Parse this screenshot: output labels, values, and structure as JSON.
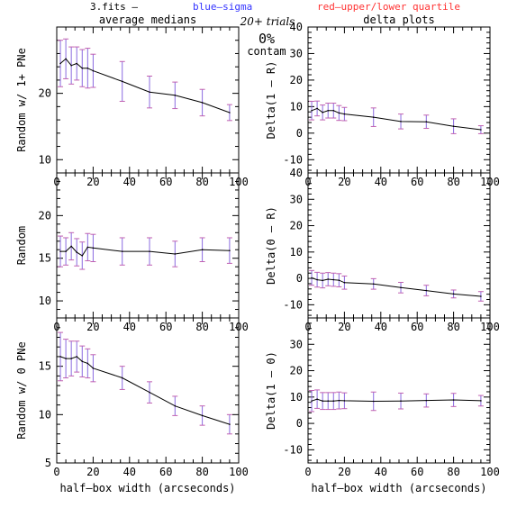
{
  "header": {
    "file_label": "3.fits  –",
    "blue_label": "blue–sigma",
    "red_label": "red–upper/lower quartile",
    "trials_label": "20+ trials",
    "contam_pct": "0%",
    "contam_label": "contam",
    "left_title": "average medians",
    "right_title": "delta plots"
  },
  "colors": {
    "blue": "#3333ff",
    "red": "#ff3333",
    "errorbar": "#8a6ae0",
    "errorcap": "#c060b0"
  },
  "chart_data": [
    {
      "type": "line",
      "panel": "top-left",
      "ylabel": "Random w/ 1+ PNe",
      "xlim": [
        0,
        100
      ],
      "ylim": [
        8,
        30
      ],
      "yticks": [
        10,
        20
      ],
      "x": [
        2,
        5,
        8,
        11,
        14,
        17,
        20,
        36,
        51,
        65,
        80,
        95
      ],
      "y": [
        24.5,
        25.2,
        24.2,
        24.5,
        23.8,
        23.8,
        23.4,
        21.8,
        20.2,
        19.7,
        18.6,
        17.1
      ],
      "err": [
        3.5,
        3.0,
        2.8,
        2.5,
        2.8,
        3.0,
        2.5,
        3.0,
        2.4,
        2.0,
        2.0,
        1.2
      ]
    },
    {
      "type": "line",
      "panel": "middle-left",
      "ylabel": "Random",
      "xlim": [
        0,
        100
      ],
      "ylim": [
        8,
        25
      ],
      "yticks": [
        10,
        15,
        20
      ],
      "x": [
        2,
        5,
        8,
        11,
        14,
        17,
        20,
        36,
        51,
        65,
        80,
        95
      ],
      "y": [
        15.8,
        15.8,
        16.4,
        15.7,
        15.3,
        16.3,
        16.2,
        15.8,
        15.8,
        15.5,
        16.0,
        15.9
      ],
      "err": [
        1.8,
        1.6,
        1.6,
        1.6,
        1.6,
        1.6,
        1.6,
        1.6,
        1.6,
        1.5,
        1.4,
        1.5
      ]
    },
    {
      "type": "line",
      "panel": "bottom-left",
      "ylabel": "Random w/ 0 PNe",
      "xlabel": "half–box width (arcseconds)",
      "xlim": [
        0,
        100
      ],
      "ylim": [
        5,
        20
      ],
      "yticks": [
        5,
        10,
        15
      ],
      "x": [
        2,
        5,
        8,
        11,
        14,
        17,
        20,
        36,
        51,
        65,
        80,
        95
      ],
      "y": [
        16.0,
        15.8,
        15.8,
        16.0,
        15.5,
        15.3,
        14.8,
        13.8,
        12.3,
        10.9,
        9.9,
        9.0
      ],
      "err": [
        2.5,
        2.0,
        1.8,
        1.6,
        1.6,
        1.5,
        1.4,
        1.2,
        1.1,
        1.0,
        1.0,
        1.0
      ]
    },
    {
      "type": "line",
      "panel": "top-right",
      "ylabel": "Delta(1 – R)",
      "xlim": [
        0,
        100
      ],
      "ylim": [
        -15,
        40
      ],
      "yticks": [
        -10,
        0,
        10,
        20,
        30,
        40
      ],
      "x": [
        2,
        5,
        8,
        11,
        14,
        17,
        20,
        36,
        51,
        65,
        80,
        95
      ],
      "y": [
        8.5,
        9.3,
        7.8,
        8.5,
        8.5,
        7.6,
        7.2,
        6.0,
        4.4,
        4.3,
        2.6,
        1.3
      ],
      "err": [
        3.5,
        2.8,
        2.8,
        2.8,
        2.8,
        2.8,
        2.5,
        3.5,
        2.8,
        2.5,
        2.8,
        1.5
      ]
    },
    {
      "type": "line",
      "panel": "middle-right",
      "ylabel": "Delta(0 – R)",
      "xlim": [
        0,
        100
      ],
      "ylim": [
        -15,
        40
      ],
      "yticks": [
        -10,
        0,
        10,
        20,
        30,
        40
      ],
      "x": [
        2,
        5,
        8,
        11,
        14,
        17,
        20,
        36,
        51,
        65,
        80,
        95
      ],
      "y": [
        0.2,
        -0.5,
        -0.8,
        -0.3,
        -0.5,
        -0.7,
        -1.6,
        -2.1,
        -3.5,
        -4.6,
        -5.9,
        -6.8
      ],
      "err": [
        2.8,
        2.8,
        2.8,
        2.5,
        2.5,
        2.5,
        2.5,
        2.0,
        2.0,
        2.0,
        1.5,
        1.8
      ]
    },
    {
      "type": "line",
      "panel": "bottom-right",
      "ylabel": "Delta(1 – 0)",
      "xlabel": "half–box width (arcseconds)",
      "xlim": [
        0,
        100
      ],
      "ylim": [
        -15,
        40
      ],
      "yticks": [
        -10,
        0,
        10,
        20,
        30
      ],
      "x": [
        2,
        5,
        8,
        11,
        14,
        17,
        20,
        36,
        51,
        65,
        80,
        95
      ],
      "y": [
        8.5,
        9.2,
        8.5,
        8.5,
        8.5,
        8.7,
        8.6,
        8.4,
        8.5,
        8.7,
        8.9,
        8.6
      ],
      "err": [
        4.0,
        3.5,
        3.2,
        3.2,
        3.2,
        3.2,
        3.0,
        3.5,
        3.0,
        2.5,
        2.5,
        2.0
      ]
    }
  ],
  "xticks": [
    0,
    20,
    40,
    60,
    80,
    100
  ]
}
